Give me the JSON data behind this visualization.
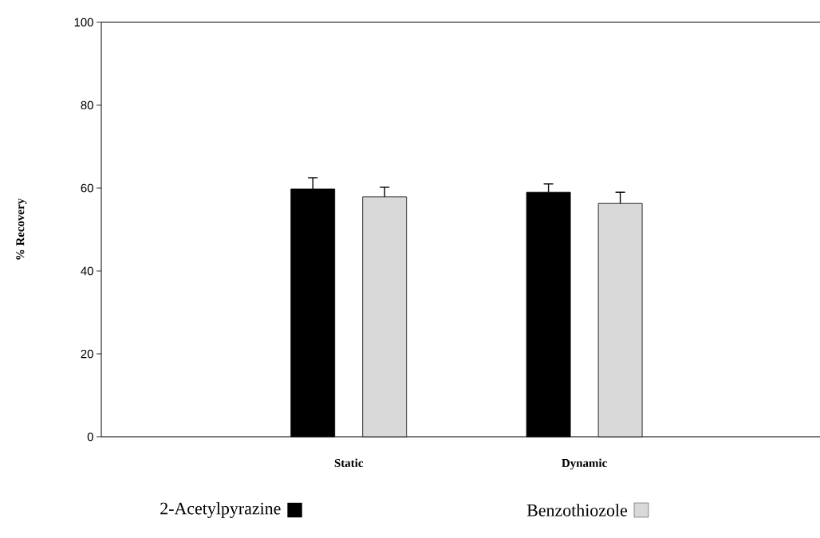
{
  "chart_data": {
    "type": "bar",
    "ylabel": "% Recovery",
    "categories": [
      "Static",
      "Dynamic"
    ],
    "series": [
      {
        "name": "2-Acetylpyrazine",
        "color": "#000000",
        "values": [
          59.8,
          59.0
        ],
        "errors": [
          2.7,
          2.0
        ]
      },
      {
        "name": "Benzothiozole",
        "color": "#d9d9d9",
        "values": [
          57.9,
          56.3
        ],
        "errors": [
          2.3,
          2.7
        ]
      }
    ],
    "ylim": [
      0,
      100
    ],
    "yticks": [
      0,
      20,
      40,
      60,
      80,
      100
    ],
    "legend": "bottom",
    "grid": false
  }
}
